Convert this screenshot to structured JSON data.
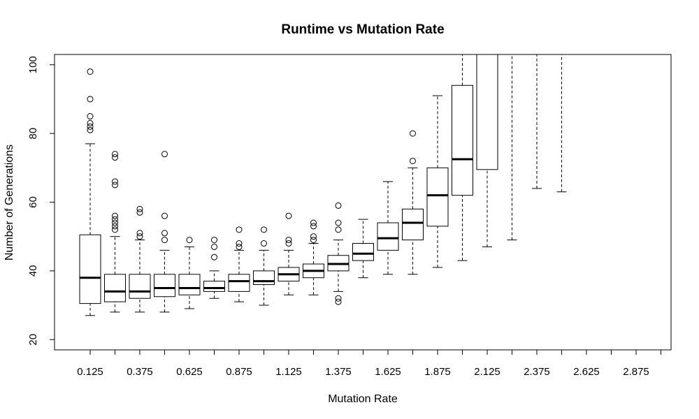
{
  "chart_data": {
    "type": "boxplot",
    "title": "Runtime vs Mutation Rate",
    "xlabel": "Mutation Rate",
    "ylabel": "Number of Generations",
    "ylim": [
      17,
      103
    ],
    "yticks": [
      20,
      40,
      60,
      80,
      100
    ],
    "x_labels_shown": [
      "0.125",
      "0.375",
      "0.625",
      "0.875",
      "1.125",
      "1.375",
      "1.625",
      "1.875",
      "2.125",
      "2.375",
      "2.625",
      "2.875"
    ],
    "grid": false,
    "legend": "none",
    "groups": [
      {
        "x": 0.125,
        "whisker_low": 27,
        "q1": 30.5,
        "median": 38,
        "q3": 50.5,
        "whisker_high": 77,
        "outliers": [
          81,
          82,
          83,
          85,
          90,
          98
        ]
      },
      {
        "x": 0.25,
        "whisker_low": 28,
        "q1": 31,
        "median": 34,
        "q3": 39,
        "whisker_high": 50,
        "outliers": [
          52,
          53,
          54,
          55,
          56,
          65,
          66,
          73,
          74
        ]
      },
      {
        "x": 0.375,
        "whisker_low": 28,
        "q1": 32,
        "median": 34,
        "q3": 39,
        "whisker_high": 49,
        "outliers": [
          50,
          51,
          57,
          58
        ]
      },
      {
        "x": 0.5,
        "whisker_low": 28,
        "q1": 32.5,
        "median": 35,
        "q3": 39,
        "whisker_high": 46,
        "outliers": [
          49,
          51,
          56,
          74
        ]
      },
      {
        "x": 0.625,
        "whisker_low": 29,
        "q1": 33,
        "median": 35,
        "q3": 39,
        "whisker_high": 47,
        "outliers": [
          49
        ]
      },
      {
        "x": 0.75,
        "whisker_low": 32,
        "q1": 34,
        "median": 35,
        "q3": 37,
        "whisker_high": 40,
        "outliers": [
          44,
          47,
          49
        ]
      },
      {
        "x": 0.875,
        "whisker_low": 31,
        "q1": 34,
        "median": 37,
        "q3": 39,
        "whisker_high": 46,
        "outliers": [
          47,
          48,
          52
        ]
      },
      {
        "x": 1.0,
        "whisker_low": 30,
        "q1": 36,
        "median": 37,
        "q3": 40,
        "whisker_high": 46,
        "outliers": [
          48,
          52
        ]
      },
      {
        "x": 1.125,
        "whisker_low": 33,
        "q1": 37,
        "median": 39,
        "q3": 41,
        "whisker_high": 46,
        "outliers": [
          48,
          49,
          56
        ]
      },
      {
        "x": 1.25,
        "whisker_low": 33,
        "q1": 38,
        "median": 40,
        "q3": 42,
        "whisker_high": 48,
        "outliers": [
          49,
          50,
          53,
          54
        ]
      },
      {
        "x": 1.375,
        "whisker_low": 34,
        "q1": 40,
        "median": 42,
        "q3": 44.5,
        "whisker_high": 49,
        "outliers": [
          31,
          32,
          52,
          54,
          59
        ]
      },
      {
        "x": 1.5,
        "whisker_low": 38,
        "q1": 43,
        "median": 45,
        "q3": 48,
        "whisker_high": 55,
        "outliers": []
      },
      {
        "x": 1.625,
        "whisker_low": 39,
        "q1": 46,
        "median": 49.5,
        "q3": 54,
        "whisker_high": 66,
        "outliers": []
      },
      {
        "x": 1.75,
        "whisker_low": 39,
        "q1": 49,
        "median": 54,
        "q3": 58,
        "whisker_high": 70,
        "outliers": [
          72,
          80
        ]
      },
      {
        "x": 1.875,
        "whisker_low": 41,
        "q1": 53,
        "median": 62,
        "q3": 70,
        "whisker_high": 91,
        "outliers": []
      },
      {
        "x": 2.0,
        "whisker_low": 43,
        "q1": 62,
        "median": 72.5,
        "q3": 94,
        "whisker_high": 103,
        "outliers": []
      },
      {
        "x": 2.125,
        "whisker_low": 47,
        "q1": 69.5,
        "median": 103,
        "q3": 103,
        "whisker_high": 103,
        "outliers": []
      },
      {
        "x": 2.25,
        "whisker_low": 49,
        "q1": 103,
        "median": 103,
        "q3": 103,
        "whisker_high": 103,
        "outliers": []
      },
      {
        "x": 2.375,
        "whisker_low": 64,
        "q1": 103,
        "median": 103,
        "q3": 103,
        "whisker_high": 103,
        "outliers": []
      },
      {
        "x": 2.5,
        "whisker_low": 63,
        "q1": 103,
        "median": 103,
        "q3": 103,
        "whisker_high": 103,
        "outliers": []
      },
      {
        "x": 2.625,
        "whisker_low": null,
        "q1": null,
        "median": null,
        "q3": null,
        "whisker_high": null,
        "outliers": []
      },
      {
        "x": 2.75,
        "whisker_low": null,
        "q1": null,
        "median": null,
        "q3": null,
        "whisker_high": null,
        "outliers": []
      },
      {
        "x": 2.875,
        "whisker_low": null,
        "q1": null,
        "median": null,
        "q3": null,
        "whisker_high": null,
        "outliers": []
      },
      {
        "x": 3.0,
        "whisker_low": null,
        "q1": null,
        "median": null,
        "q3": null,
        "whisker_high": null,
        "outliers": []
      }
    ]
  }
}
